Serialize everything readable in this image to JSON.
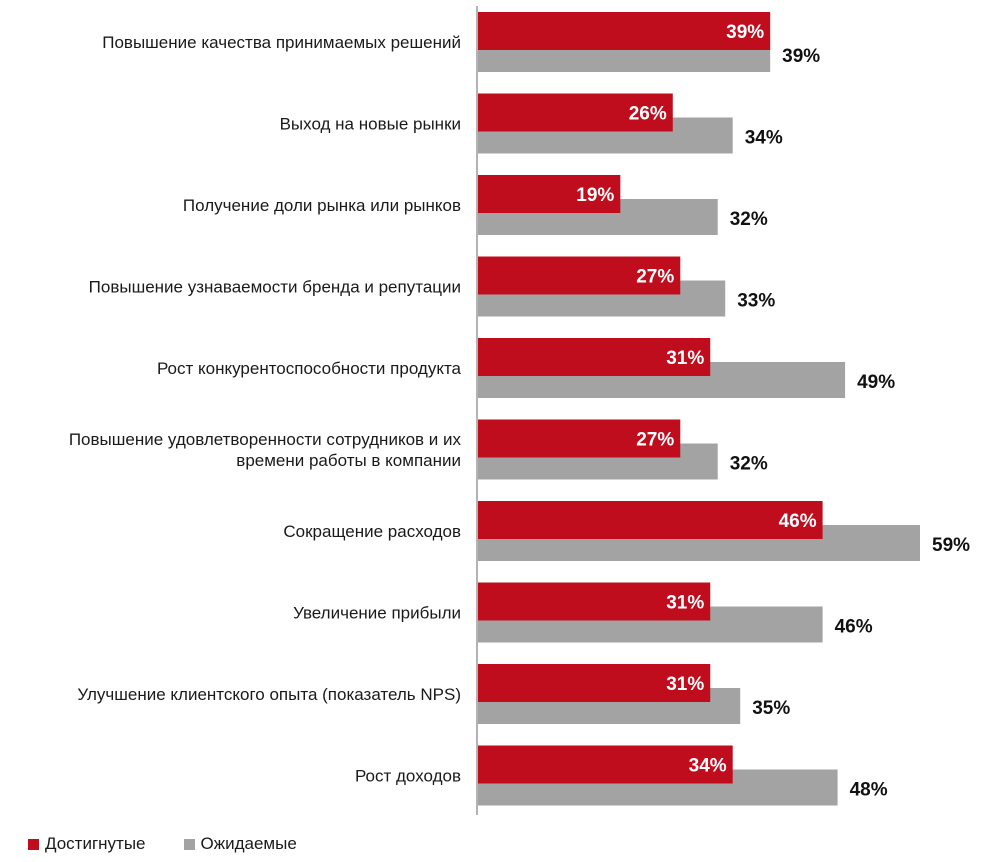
{
  "chart_data": {
    "type": "bar",
    "orientation": "horizontal",
    "categories": [
      [
        "Повышение качества принимаемых решений"
      ],
      [
        "Выход на новые рынки"
      ],
      [
        "Получение доли рынка или рынков"
      ],
      [
        "Повышение узнаваемости бренда и репутации"
      ],
      [
        "Рост конкурентоспособности продукта"
      ],
      [
        "Повышение удовлетворенности сотрудников и их",
        "времени работы в компании"
      ],
      [
        "Сокращение расходов"
      ],
      [
        "Увеличение прибыли"
      ],
      [
        "Улучшение клиентского опыта (показатель NPS)"
      ],
      [
        "Рост доходов"
      ]
    ],
    "series": [
      {
        "name": "Достигнутые",
        "color": "#c00d1e",
        "values": [
          39,
          26,
          19,
          27,
          31,
          27,
          46,
          31,
          31,
          34
        ],
        "labels": [
          "39%",
          "26%",
          "19%",
          "27%",
          "31%",
          "27%",
          "46%",
          "31%",
          "31%",
          "34%"
        ]
      },
      {
        "name": "Ожидаемые",
        "color": "#a3a3a3",
        "values": [
          39,
          34,
          32,
          33,
          49,
          32,
          59,
          46,
          35,
          48
        ],
        "labels": [
          "39%",
          "34%",
          "32%",
          "33%",
          "49%",
          "32%",
          "59%",
          "46%",
          "35%",
          "48%"
        ]
      }
    ],
    "xlim": [
      0,
      59
    ],
    "grid": false,
    "legend_position": "bottom-left"
  }
}
